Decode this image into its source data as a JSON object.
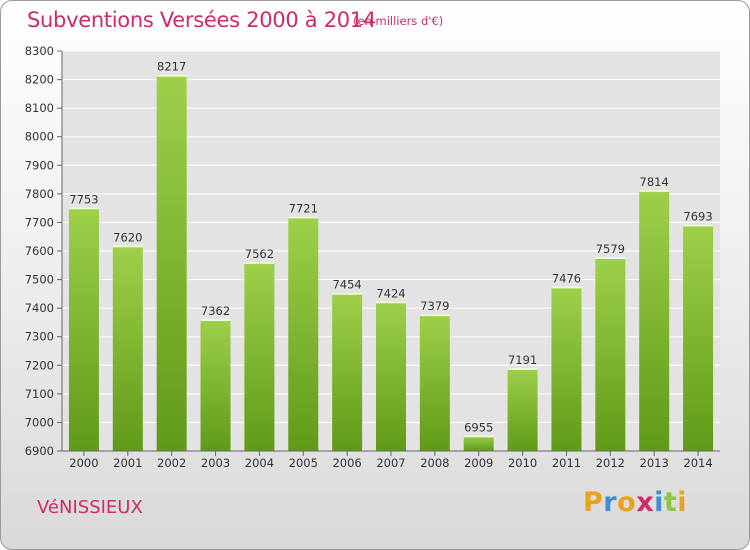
{
  "header": {
    "title": "Subventions Versées 2000 à 2014",
    "subtitle": "(en milliers d'€)"
  },
  "footer": {
    "place": "VéNISSIEUX",
    "logo_letters": [
      "P",
      "r",
      "o",
      "x",
      "i",
      "t",
      "i"
    ],
    "logo_colors": [
      "#e8a21c",
      "#3c8fd0",
      "#e8a21c",
      "#cc2b6d",
      "#3c8fd0",
      "#8dc53e",
      "#e8a21c"
    ]
  },
  "chart_data": {
    "type": "bar",
    "title": "Subventions Versées 2000 à 2014",
    "subtitle": "(en milliers d'€)",
    "categories": [
      "2000",
      "2001",
      "2002",
      "2003",
      "2004",
      "2005",
      "2006",
      "2007",
      "2008",
      "2009",
      "2010",
      "2011",
      "2012",
      "2013",
      "2014"
    ],
    "values": [
      7753,
      7620,
      8217,
      7362,
      7562,
      7721,
      7454,
      7424,
      7379,
      6955,
      7191,
      7476,
      7579,
      7814,
      7693
    ],
    "ylim": [
      6900,
      8300
    ],
    "yticks": [
      6900,
      7000,
      7100,
      7200,
      7300,
      7400,
      7500,
      7600,
      7700,
      7800,
      7900,
      8000,
      8100,
      8200,
      8300
    ],
    "grid": true,
    "bar_color": "#7db834",
    "xlabel": "",
    "ylabel": ""
  }
}
